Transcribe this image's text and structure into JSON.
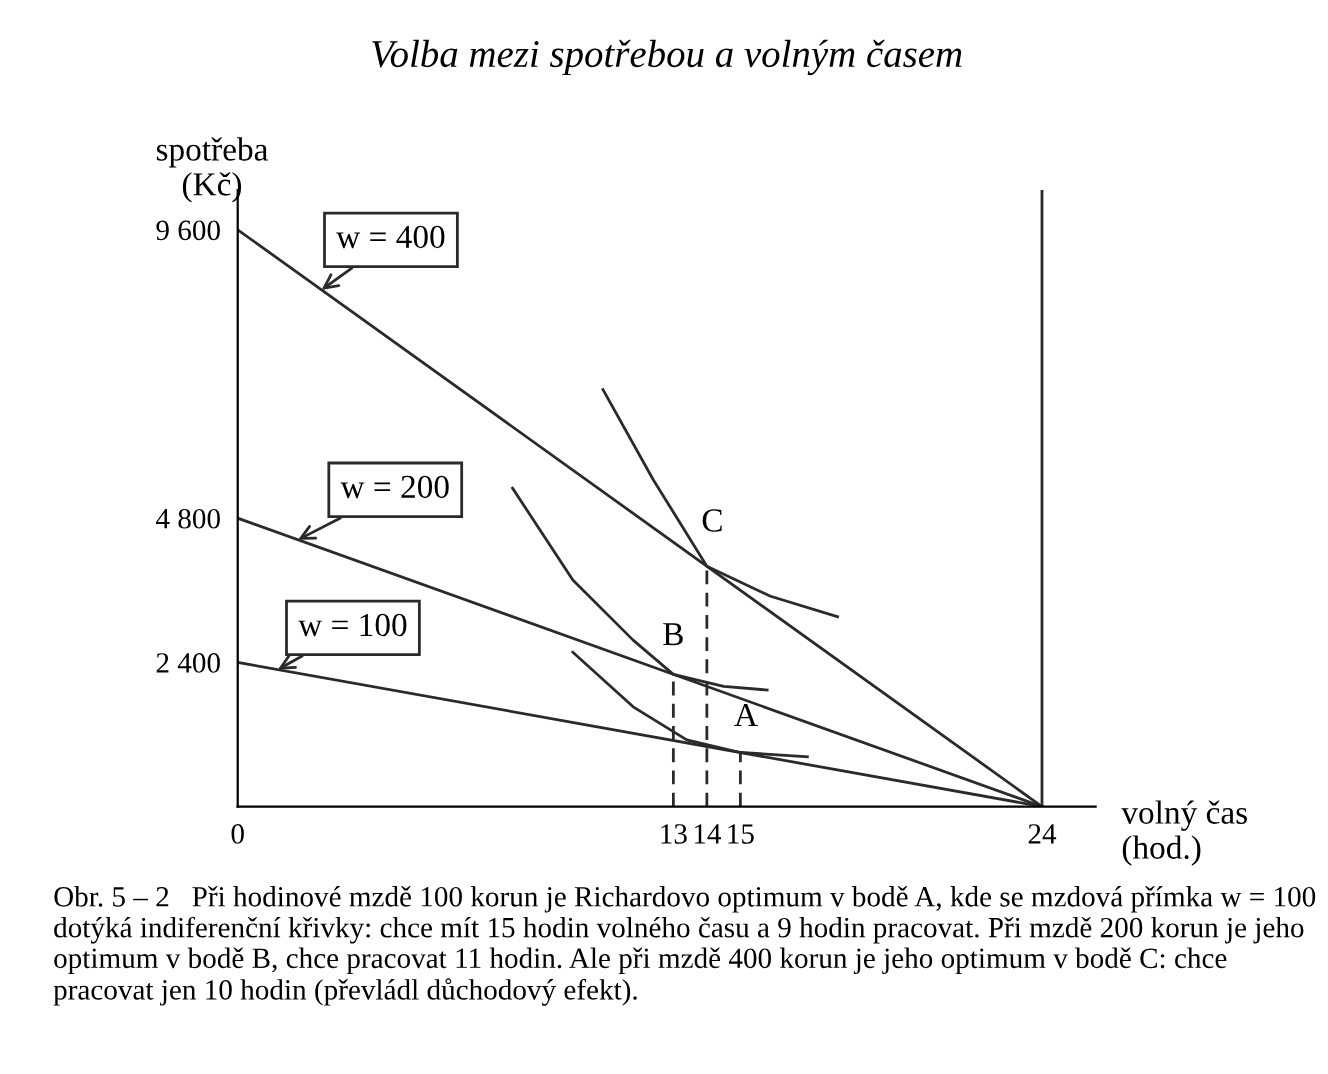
{
  "chart_data": {
    "type": "line",
    "title": "Volba mezi spotřebou a volným časem",
    "xlabel": "volný čas\n(hod.)",
    "ylabel": "spotřeba\n(Kč)",
    "xlim": [
      0,
      25.6
    ],
    "ylim": [
      0,
      10260
    ],
    "xticks": [
      0,
      13,
      14,
      15,
      24
    ],
    "yticks": [
      {
        "value": 2400,
        "label": "2 400"
      },
      {
        "value": 4800,
        "label": "4 800"
      },
      {
        "value": 9600,
        "label": "9 600"
      }
    ],
    "grid": false,
    "ref_lines": [
      {
        "axis": "x",
        "value": 24,
        "color": "#2a2a2a"
      }
    ],
    "legend": false,
    "marker": "none",
    "series": [
      {
        "color": "#2a2a2a",
        "x": [
          0,
          24
        ],
        "values": [
          9600,
          0
        ]
      },
      {
        "color": "#2a2a2a",
        "x": [
          0,
          24
        ],
        "values": [
          4800,
          0
        ]
      },
      {
        "color": "#2a2a2a",
        "x": [
          0,
          24
        ],
        "values": [
          2400,
          0
        ]
      },
      {
        "color": "#2a2a2a",
        "x": [
          10.9,
          12.4,
          14,
          15.9,
          17.9
        ],
        "values": [
          6940,
          5440,
          4000,
          3500,
          3160
        ]
      },
      {
        "color": "#2a2a2a",
        "x": [
          8.2,
          10.0,
          11.8,
          13,
          14.5,
          15.8
        ],
        "values": [
          5300,
          3770,
          2770,
          2200,
          2000,
          1940
        ]
      },
      {
        "color": "#2a2a2a",
        "x": [
          10.0,
          11.8,
          13.4,
          15,
          17.0
        ],
        "values": [
          2570,
          1660,
          1110,
          900,
          830
        ]
      },
      {
        "color": "#2a2a2a",
        "line_style": "dashed",
        "x": [
          13,
          13
        ],
        "values": [
          0,
          2200
        ]
      },
      {
        "color": "#2a2a2a",
        "line_style": "dashed",
        "x": [
          14,
          14
        ],
        "values": [
          0,
          4000
        ]
      },
      {
        "color": "#2a2a2a",
        "line_style": "dashed",
        "x": [
          15,
          15
        ],
        "values": [
          0,
          900
        ]
      }
    ],
    "annotations": [
      {
        "text": "w = 400",
        "x": 2.5,
        "y": 8600
      },
      {
        "text": "w = 200",
        "x": 1.8,
        "y": 4440
      },
      {
        "text": "w = 100",
        "x": 1.2,
        "y": 2280
      },
      {
        "text": "A",
        "x": 15,
        "y": 900
      },
      {
        "text": "B",
        "x": 13,
        "y": 2200
      },
      {
        "text": "C",
        "x": 14,
        "y": 4000
      },
      "Obr. 5 – 2   Při hodinové mzdě 100 korun je Richardovo optimum v bodě A, kde se mzdová přímka w = 100 dotýká indiferenční křivky: chce mít 15 hodin volného času a 9 hodin pracovat. Při mzdě 200 korun je jeho optimum v bodě B, chce pracovat 11 hodin. Ale při mzdě 400 korun je jeho optimum v bodě C: chce pracovat jen 10 hodin (převládl důchodový efekt)."
    ]
  }
}
